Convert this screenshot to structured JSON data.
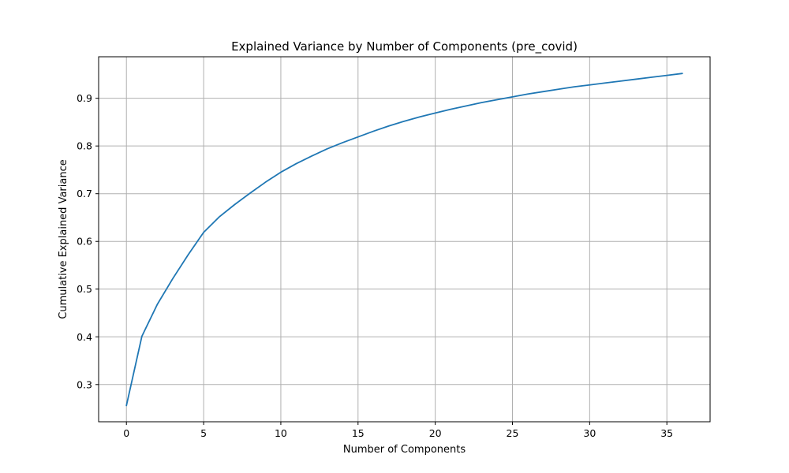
{
  "chart_data": {
    "type": "line",
    "title": "Explained Variance by Number of Components (pre_covid)",
    "xlabel": "Number of Components",
    "ylabel": "Cumulative Explained Variance",
    "xlim": [
      -1.8,
      37.8
    ],
    "ylim": [
      0.222,
      0.987
    ],
    "xticks": [
      0,
      5,
      10,
      15,
      20,
      25,
      30,
      35
    ],
    "yticks": [
      0.3,
      0.4,
      0.5,
      0.6,
      0.7,
      0.8,
      0.9
    ],
    "xtick_labels": [
      "0",
      "5",
      "10",
      "15",
      "20",
      "25",
      "30",
      "35"
    ],
    "ytick_labels": [
      "0.3",
      "0.4",
      "0.5",
      "0.6",
      "0.7",
      "0.8",
      "0.9"
    ],
    "grid": true,
    "legend": "none",
    "series": [
      {
        "color": "#1f77b4",
        "x": [
          0,
          1,
          2,
          3,
          4,
          5,
          6,
          7,
          8,
          9,
          10,
          11,
          12,
          13,
          14,
          15,
          16,
          17,
          18,
          19,
          20,
          21,
          22,
          23,
          24,
          25,
          26,
          27,
          28,
          29,
          30,
          31,
          32,
          33,
          34,
          35,
          36
        ],
        "y": [
          0.256,
          0.401,
          0.468,
          0.522,
          0.572,
          0.619,
          0.651,
          0.677,
          0.701,
          0.724,
          0.745,
          0.763,
          0.779,
          0.794,
          0.807,
          0.819,
          0.831,
          0.842,
          0.852,
          0.861,
          0.869,
          0.877,
          0.884,
          0.891,
          0.897,
          0.903,
          0.909,
          0.914,
          0.919,
          0.924,
          0.928,
          0.932,
          0.936,
          0.94,
          0.944,
          0.948,
          0.952
        ]
      }
    ]
  }
}
